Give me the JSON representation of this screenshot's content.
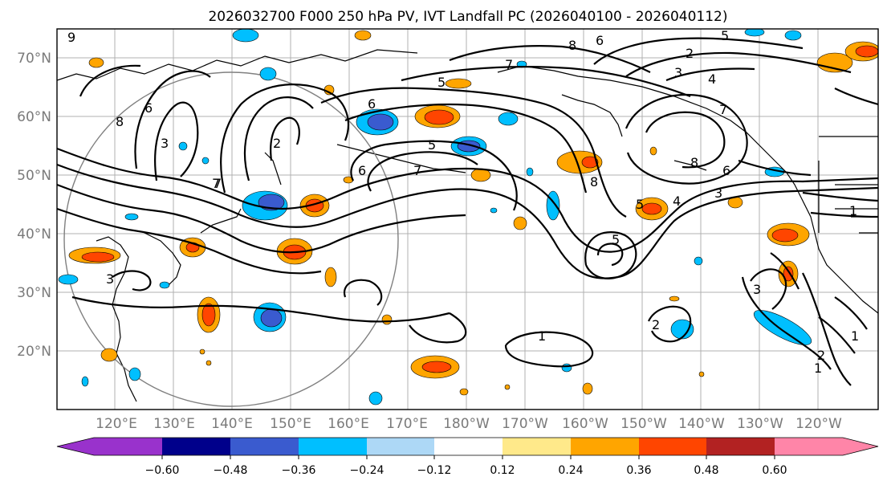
{
  "title": "2026032700 F000 250 hPa PV, IVT Landfall PC (2026040100 - 2026040112)",
  "lat_labels": [
    "70°N",
    "60°N",
    "50°N",
    "40°N",
    "30°N",
    "20°N"
  ],
  "lon_labels": [
    "120°E",
    "130°E",
    "140°E",
    "150°E",
    "160°E",
    "170°E",
    "180°W",
    "170°W",
    "160°W",
    "150°W",
    "140°W",
    "130°W",
    "120°W"
  ],
  "colorbar": {
    "ticks": [
      "−0.60",
      "−0.48",
      "−0.36",
      "−0.24",
      "−0.12",
      "0.12",
      "0.24",
      "0.36",
      "0.48",
      "0.60"
    ],
    "colors": [
      "#9932CC",
      "#00008B",
      "#3A5BCF",
      "#00BFFF",
      "#ADD8F6",
      "#FFFFFF",
      "#FFE98A",
      "#FFA500",
      "#FF4500",
      "#B22222",
      "#FF85A8"
    ]
  },
  "contour_labels": [
    "9",
    "8",
    "6",
    "7",
    "8",
    "6",
    "2",
    "5",
    "3",
    "4",
    "7",
    "7",
    "5",
    "3",
    "6",
    "7",
    "5",
    "8",
    "6",
    "3",
    "8",
    "5",
    "4",
    "1",
    "3",
    "1",
    "2",
    "2",
    "1",
    "7",
    "3",
    "5",
    "6",
    "2",
    "1"
  ]
}
